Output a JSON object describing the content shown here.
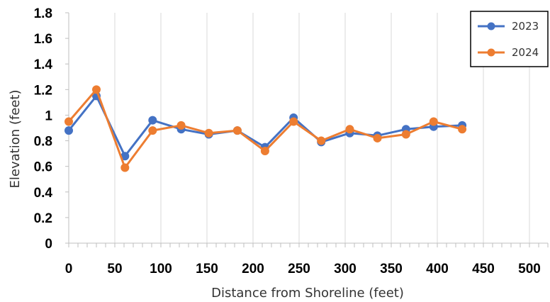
{
  "chart_data": {
    "type": "line",
    "title": "",
    "xlabel": "Distance from Shoreline (feet)",
    "ylabel": "Elevation (feet)",
    "xlim": [
      0,
      520
    ],
    "ylim": [
      0,
      1.8
    ],
    "x_ticks": [
      0,
      50,
      100,
      150,
      200,
      250,
      300,
      350,
      400,
      450,
      500
    ],
    "y_ticks": [
      0,
      0.2,
      0.4,
      0.6,
      0.8,
      1,
      1.2,
      1.4,
      1.6,
      1.8
    ],
    "y_tick_labels": [
      "0",
      "0.2",
      "0.4",
      "0.6",
      "0.8",
      "1",
      "1.2",
      "1.4",
      "1.6",
      "1.8"
    ],
    "grid": "vertical",
    "legend_position": "top-right",
    "series": [
      {
        "name": "2023",
        "color": "#4472C4",
        "x": [
          0,
          30,
          61,
          91,
          122,
          152,
          183,
          213,
          244,
          274,
          305,
          335,
          366,
          396,
          427
        ],
        "y": [
          0.88,
          1.15,
          0.68,
          0.96,
          0.89,
          0.85,
          0.88,
          0.75,
          0.98,
          0.79,
          0.86,
          0.84,
          0.89,
          0.91,
          0.92
        ]
      },
      {
        "name": "2024",
        "color": "#ED7D31",
        "x": [
          0,
          30,
          61,
          91,
          122,
          152,
          183,
          213,
          244,
          274,
          305,
          335,
          366,
          396,
          427
        ],
        "y": [
          0.95,
          1.2,
          0.59,
          0.88,
          0.92,
          0.86,
          0.88,
          0.72,
          0.95,
          0.8,
          0.89,
          0.82,
          0.85,
          0.95,
          0.89
        ]
      }
    ]
  }
}
